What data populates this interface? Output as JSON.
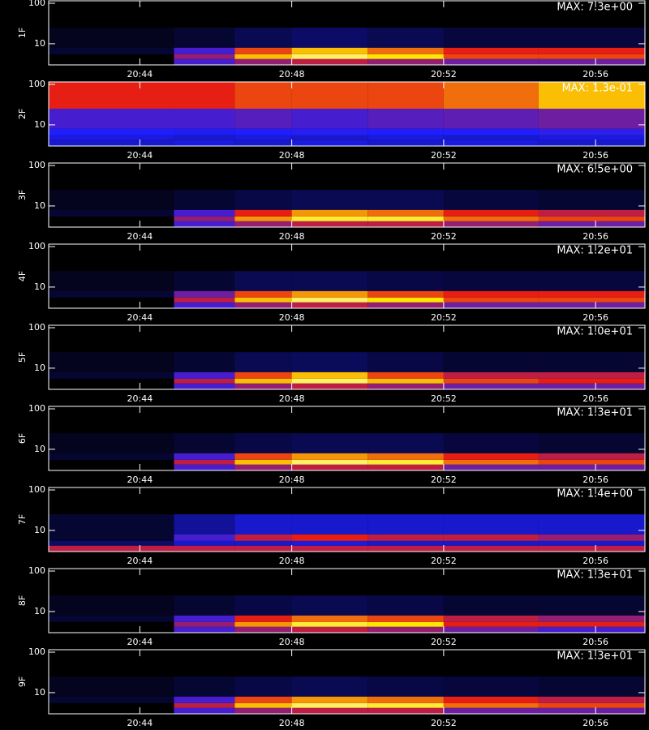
{
  "chart_data": [
    {
      "type": "heatmap",
      "ylabel": "1F",
      "annotation": "MAX: 7.3e+00",
      "ylog": true,
      "x": [
        41.6,
        44.9,
        46.5,
        48,
        50,
        52,
        54.5,
        57.3
      ],
      "y": [
        3,
        4.2,
        5.5,
        8,
        25,
        115
      ],
      "z": [
        [
          0,
          0.3,
          0.4,
          0.45,
          0.4,
          0.35,
          0.35
        ],
        [
          0,
          0.4,
          0.7,
          0.85,
          0.75,
          0.55,
          0.55
        ],
        [
          0.05,
          0.3,
          0.55,
          0.7,
          0.6,
          0.5,
          0.5
        ],
        [
          0.03,
          0.05,
          0.08,
          0.1,
          0.08,
          0.06,
          0.06
        ],
        [
          0,
          0,
          0,
          0,
          0,
          0,
          0
        ]
      ],
      "xlim": [
        41.6,
        57.3
      ],
      "ylim": [
        3,
        115
      ],
      "xticks": [
        {
          "value": 44,
          "label": "20:44"
        },
        {
          "value": 48,
          "label": "20:48"
        },
        {
          "value": 52,
          "label": "20:52"
        },
        {
          "value": 56,
          "label": "20:56"
        }
      ],
      "yticks": [
        10,
        100
      ]
    },
    {
      "type": "heatmap",
      "ylabel": "2F",
      "annotation": "MAX: 1.3e-01",
      "ylog": true,
      "x": [
        41.6,
        44.9,
        46.5,
        48,
        50,
        52,
        54.5,
        57.3
      ],
      "y": [
        3,
        4.2,
        5.5,
        8,
        25,
        115
      ],
      "z": [
        [
          0.2,
          0.22,
          0.2,
          0.22,
          0.2,
          0.22,
          0.2
        ],
        [
          0.22,
          0.2,
          0.22,
          0.2,
          0.22,
          0.2,
          0.22
        ],
        [
          0.25,
          0.24,
          0.25,
          0.26,
          0.25,
          0.25,
          0.27
        ],
        [
          0.3,
          0.3,
          0.32,
          0.3,
          0.32,
          0.33,
          0.35
        ],
        [
          0.5,
          0.5,
          0.55,
          0.55,
          0.55,
          0.6,
          0.7
        ]
      ],
      "xlim": [
        41.6,
        57.3
      ],
      "ylim": [
        3,
        115
      ],
      "xticks": [
        {
          "value": 44,
          "label": "20:44"
        },
        {
          "value": 48,
          "label": "20:48"
        },
        {
          "value": 52,
          "label": "20:52"
        },
        {
          "value": 56,
          "label": "20:56"
        }
      ],
      "yticks": [
        10,
        100
      ]
    },
    {
      "type": "heatmap",
      "ylabel": "3F",
      "annotation": "MAX: 6.5e+00",
      "ylog": true,
      "x": [
        41.6,
        44.9,
        46.5,
        48,
        50,
        52,
        54.5,
        57.3
      ],
      "y": [
        3,
        4.2,
        5.5,
        8,
        25,
        115
      ],
      "z": [
        [
          0,
          0.3,
          0.4,
          0.45,
          0.45,
          0.4,
          0.35
        ],
        [
          0,
          0.4,
          0.65,
          0.8,
          0.8,
          0.6,
          0.55
        ],
        [
          0.05,
          0.3,
          0.5,
          0.65,
          0.6,
          0.5,
          0.45
        ],
        [
          0.03,
          0.05,
          0.07,
          0.08,
          0.08,
          0.06,
          0.05
        ],
        [
          0,
          0,
          0,
          0,
          0,
          0,
          0
        ]
      ],
      "xlim": [
        41.6,
        57.3
      ],
      "ylim": [
        3,
        115
      ],
      "xticks": [
        {
          "value": 44,
          "label": "20:44"
        },
        {
          "value": 48,
          "label": "20:48"
        },
        {
          "value": 52,
          "label": "20:52"
        },
        {
          "value": 56,
          "label": "20:56"
        }
      ],
      "yticks": [
        10,
        100
      ]
    },
    {
      "type": "heatmap",
      "ylabel": "4F",
      "annotation": "MAX: 1.2e+01",
      "ylog": true,
      "x": [
        41.6,
        44.9,
        46.5,
        48,
        50,
        52,
        54.5,
        57.3
      ],
      "y": [
        3,
        4.2,
        5.5,
        8,
        25,
        115
      ],
      "z": [
        [
          0,
          0.3,
          0.4,
          0.45,
          0.4,
          0.35,
          0.35
        ],
        [
          0,
          0.45,
          0.7,
          0.85,
          0.75,
          0.55,
          0.55
        ],
        [
          0.05,
          0.35,
          0.55,
          0.65,
          0.55,
          0.5,
          0.5
        ],
        [
          0.03,
          0.05,
          0.08,
          0.08,
          0.07,
          0.06,
          0.06
        ],
        [
          0,
          0,
          0,
          0,
          0,
          0,
          0
        ]
      ],
      "xlim": [
        41.6,
        57.3
      ],
      "ylim": [
        3,
        115
      ],
      "xticks": [
        {
          "value": 44,
          "label": "20:44"
        },
        {
          "value": 48,
          "label": "20:48"
        },
        {
          "value": 52,
          "label": "20:52"
        },
        {
          "value": 56,
          "label": "20:56"
        }
      ],
      "yticks": [
        10,
        100
      ]
    },
    {
      "type": "heatmap",
      "ylabel": "5F",
      "annotation": "MAX: 1.0e+01",
      "ylog": true,
      "x": [
        41.6,
        44.9,
        46.5,
        48,
        50,
        52,
        54.5,
        57.3
      ],
      "y": [
        3,
        4.2,
        5.5,
        8,
        25,
        115
      ],
      "z": [
        [
          0,
          0.3,
          0.4,
          0.45,
          0.4,
          0.35,
          0.35
        ],
        [
          0,
          0.45,
          0.7,
          0.85,
          0.7,
          0.55,
          0.5
        ],
        [
          0.05,
          0.3,
          0.55,
          0.7,
          0.55,
          0.45,
          0.45
        ],
        [
          0.03,
          0.05,
          0.08,
          0.09,
          0.07,
          0.05,
          0.05
        ],
        [
          0,
          0,
          0,
          0,
          0,
          0,
          0
        ]
      ],
      "xlim": [
        41.6,
        57.3
      ],
      "ylim": [
        3,
        115
      ],
      "xticks": [
        {
          "value": 44,
          "label": "20:44"
        },
        {
          "value": 48,
          "label": "20:48"
        },
        {
          "value": 52,
          "label": "20:52"
        },
        {
          "value": 56,
          "label": "20:56"
        }
      ],
      "yticks": [
        10,
        100
      ]
    },
    {
      "type": "heatmap",
      "ylabel": "6F",
      "annotation": "MAX: 1.3e+01",
      "ylog": true,
      "x": [
        41.6,
        44.9,
        46.5,
        48,
        50,
        52,
        54.5,
        57.3
      ],
      "y": [
        3,
        4.2,
        5.5,
        8,
        25,
        115
      ],
      "z": [
        [
          0,
          0.3,
          0.4,
          0.45,
          0.45,
          0.35,
          0.35
        ],
        [
          0,
          0.45,
          0.7,
          0.85,
          0.8,
          0.6,
          0.55
        ],
        [
          0.05,
          0.3,
          0.55,
          0.65,
          0.6,
          0.5,
          0.45
        ],
        [
          0.03,
          0.05,
          0.07,
          0.08,
          0.08,
          0.06,
          0.05
        ],
        [
          0,
          0,
          0,
          0,
          0,
          0,
          0
        ]
      ],
      "xlim": [
        41.6,
        57.3
      ],
      "ylim": [
        3,
        115
      ],
      "xticks": [
        {
          "value": 44,
          "label": "20:44"
        },
        {
          "value": 48,
          "label": "20:48"
        },
        {
          "value": 52,
          "label": "20:52"
        },
        {
          "value": 56,
          "label": "20:56"
        }
      ],
      "yticks": [
        10,
        100
      ]
    },
    {
      "type": "heatmap",
      "ylabel": "7F",
      "annotation": "MAX: 1.4e+00",
      "ylog": true,
      "x": [
        41.6,
        44.9,
        46.5,
        48,
        50,
        52,
        54.5,
        57.3
      ],
      "y": [
        3,
        4.2,
        5.5,
        8,
        25,
        115
      ],
      "z": [
        [
          0.45,
          0.45,
          0.45,
          0.45,
          0.45,
          0.45,
          0.45
        ],
        [
          0.1,
          0.2,
          0.2,
          0.22,
          0.2,
          0.2,
          0.2
        ],
        [
          0.05,
          0.3,
          0.45,
          0.5,
          0.45,
          0.45,
          0.4
        ],
        [
          0.05,
          0.15,
          0.2,
          0.2,
          0.2,
          0.2,
          0.2
        ],
        [
          0,
          0,
          0,
          0,
          0,
          0,
          0
        ]
      ],
      "xlim": [
        41.6,
        57.3
      ],
      "ylim": [
        3,
        115
      ],
      "xticks": [
        {
          "value": 44,
          "label": "20:44"
        },
        {
          "value": 48,
          "label": "20:48"
        },
        {
          "value": 52,
          "label": "20:52"
        },
        {
          "value": 56,
          "label": "20:56"
        }
      ],
      "yticks": [
        10,
        100
      ]
    },
    {
      "type": "heatmap",
      "ylabel": "8F",
      "annotation": "MAX: 1.3e+01",
      "ylog": true,
      "x": [
        41.6,
        44.9,
        46.5,
        48,
        50,
        52,
        54.5,
        57.3
      ],
      "y": [
        3,
        4.2,
        5.5,
        8,
        25,
        115
      ],
      "z": [
        [
          0,
          0.3,
          0.4,
          0.45,
          0.4,
          0.35,
          0.3
        ],
        [
          0,
          0.4,
          0.65,
          0.8,
          0.75,
          0.5,
          0.5
        ],
        [
          0.05,
          0.3,
          0.5,
          0.6,
          0.55,
          0.45,
          0.4
        ],
        [
          0.03,
          0.05,
          0.07,
          0.08,
          0.07,
          0.05,
          0.05
        ],
        [
          0,
          0,
          0,
          0,
          0,
          0,
          0
        ]
      ],
      "xlim": [
        41.6,
        57.3
      ],
      "ylim": [
        3,
        115
      ],
      "xticks": [
        {
          "value": 44,
          "label": "20:44"
        },
        {
          "value": 48,
          "label": "20:48"
        },
        {
          "value": 52,
          "label": "20:52"
        },
        {
          "value": 56,
          "label": "20:56"
        }
      ],
      "yticks": [
        10,
        100
      ]
    },
    {
      "type": "heatmap",
      "ylabel": "9F",
      "annotation": "MAX: 1.3e+01",
      "ylog": true,
      "x": [
        41.6,
        44.9,
        46.5,
        48,
        50,
        52,
        54.5,
        57.3
      ],
      "y": [
        3,
        4.2,
        5.5,
        8,
        25,
        115
      ],
      "z": [
        [
          0,
          0.3,
          0.4,
          0.45,
          0.45,
          0.35,
          0.35
        ],
        [
          0,
          0.45,
          0.7,
          0.85,
          0.8,
          0.6,
          0.55
        ],
        [
          0.05,
          0.3,
          0.55,
          0.65,
          0.6,
          0.5,
          0.45
        ],
        [
          0.03,
          0.05,
          0.07,
          0.08,
          0.07,
          0.06,
          0.05
        ],
        [
          0,
          0,
          0,
          0,
          0,
          0,
          0
        ]
      ],
      "xlim": [
        41.6,
        57.3
      ],
      "ylim": [
        3,
        115
      ],
      "xticks": [
        {
          "value": 44,
          "label": "20:44"
        },
        {
          "value": 48,
          "label": "20:48"
        },
        {
          "value": 52,
          "label": "20:52"
        },
        {
          "value": 56,
          "label": "20:56"
        }
      ],
      "yticks": [
        10,
        100
      ]
    }
  ]
}
